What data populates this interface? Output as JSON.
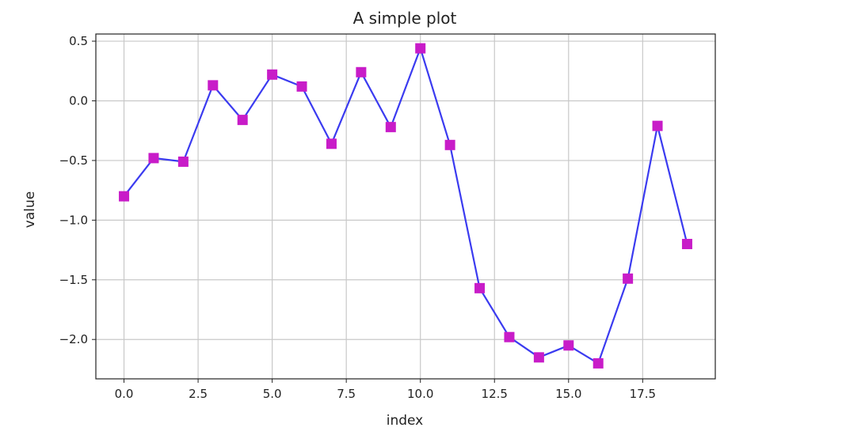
{
  "chart_data": {
    "type": "line",
    "title": "A simple plot",
    "xlabel": "index",
    "ylabel": "value",
    "xlim": [
      -0.95,
      19.95
    ],
    "ylim": [
      -2.33,
      0.56
    ],
    "grid": true,
    "x_ticks": [
      0.0,
      2.5,
      5.0,
      7.5,
      10.0,
      12.5,
      15.0,
      17.5
    ],
    "x_tick_labels": [
      "0.0",
      "2.5",
      "5.0",
      "7.5",
      "10.0",
      "12.5",
      "15.0",
      "17.5"
    ],
    "y_ticks": [
      0.5,
      0.0,
      -0.5,
      -1.0,
      -1.5,
      -2.0
    ],
    "y_tick_labels": [
      "0.5",
      "0.0",
      "−0.5",
      "−1.0",
      "−1.5",
      "−2.0"
    ],
    "series": [
      {
        "line_color": "#3b3bf0",
        "marker_color": "#c81cc8",
        "marker": "square",
        "x": [
          0,
          1,
          2,
          3,
          4,
          5,
          6,
          7,
          8,
          9,
          10,
          11,
          12,
          13,
          14,
          15,
          16,
          17,
          18,
          19
        ],
        "values": [
          -0.8,
          -0.48,
          -0.51,
          0.13,
          -0.16,
          0.22,
          0.12,
          -0.36,
          0.24,
          -0.22,
          0.44,
          -0.37,
          -1.57,
          -1.98,
          -2.15,
          -2.05,
          -2.2,
          -1.49,
          -0.21,
          -1.2
        ]
      }
    ]
  }
}
